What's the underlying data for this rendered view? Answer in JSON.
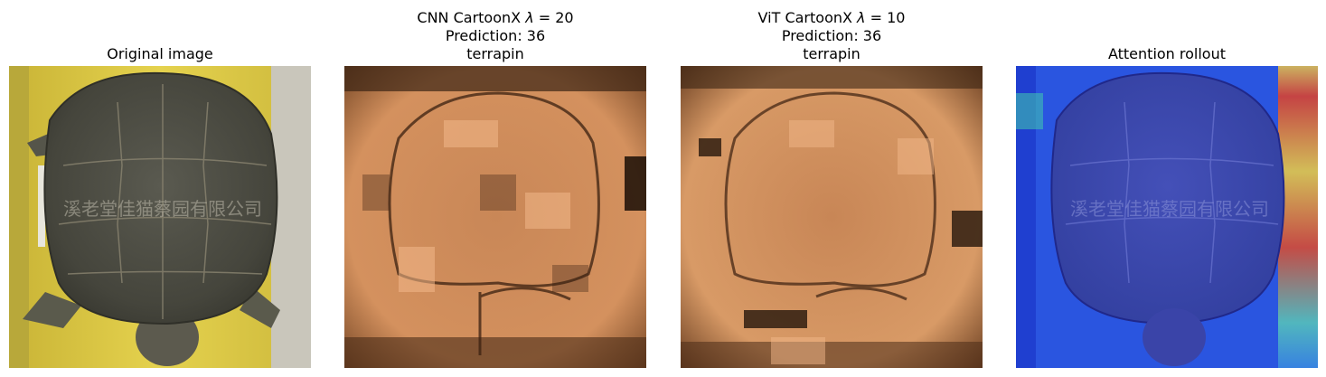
{
  "panels": [
    {
      "id": "original",
      "title_lines": [
        "Original image"
      ]
    },
    {
      "id": "cnn",
      "title_prefix": "CNN CartoonX ",
      "lambda_symbol": "λ",
      "lambda_eq": " = 20",
      "title_lines": [
        "Prediction: 36",
        "terrapin"
      ]
    },
    {
      "id": "vit",
      "title_prefix": "ViT CartoonX ",
      "lambda_symbol": "λ",
      "lambda_eq": " = 10",
      "title_lines": [
        "Prediction: 36",
        "terrapin"
      ]
    },
    {
      "id": "rollout",
      "title_lines": [
        "Attention rollout"
      ]
    }
  ],
  "watermark": "溪老堂佳猫蔡园有限公司",
  "colors": {
    "background": "#ffffff",
    "plank_yellow": "#e2cf4a",
    "shell_dark": "#4a4a40",
    "copper_light": "#d9935f",
    "copper_dark": "#3a2010",
    "attention_blue": "#2a4fd8",
    "attention_hot": "#e0402a"
  }
}
